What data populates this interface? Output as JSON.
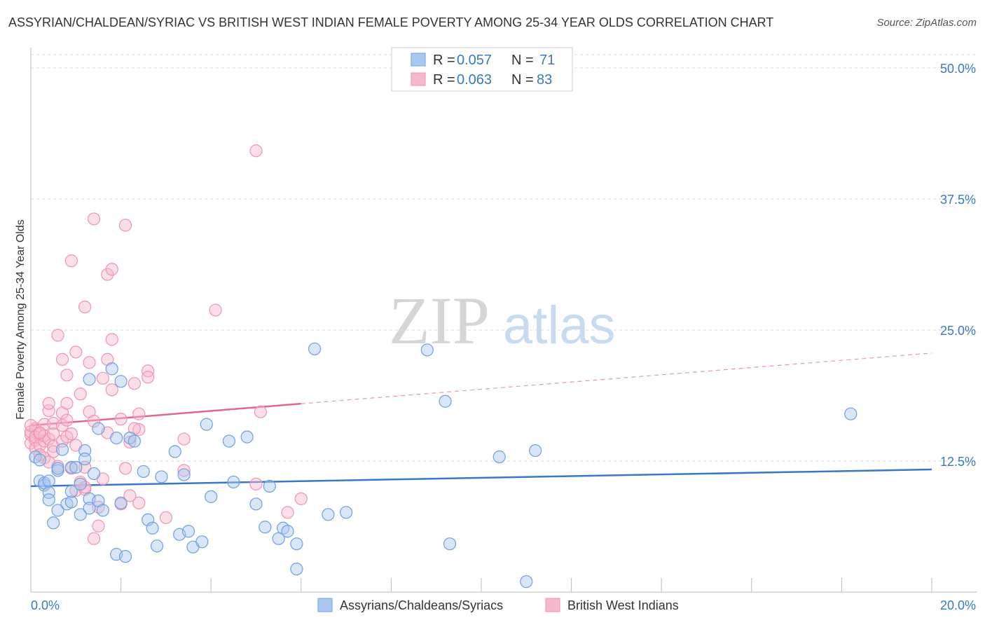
{
  "title": "ASSYRIAN/CHALDEAN/SYRIAC VS BRITISH WEST INDIAN FEMALE POVERTY AMONG 25-34 YEAR OLDS CORRELATION CHART",
  "source": "Source: ZipAtlas.com",
  "watermark": {
    "zip": "ZIP",
    "atlas": "atlas"
  },
  "colors": {
    "blue": "#3b78c4",
    "blue_fill": "#a9c8f0",
    "blue_stroke": "#6f9fdc",
    "pink": "#e0668f",
    "pink_fill": "#f6b8cb",
    "pink_stroke": "#ef93b1",
    "grid": "#d9d9d9",
    "tick": "#3b78c4"
  },
  "legend": {
    "blue": {
      "r_label": "R = ",
      "r_value": "0.057",
      "n_label": "N = ",
      "n_value": "71"
    },
    "pink": {
      "r_label": "R = ",
      "r_value": "0.063",
      "n_label": "N = ",
      "n_value": "83"
    }
  },
  "chart_data": {
    "type": "scatter",
    "title": "ASSYRIAN/CHALDEAN/SYRIAC VS BRITISH WEST INDIAN FEMALE POVERTY AMONG 25-34 YEAR OLDS CORRELATION CHART",
    "xlabel": "",
    "ylabel": "Female Poverty Among 25-34 Year Olds",
    "xlim": [
      0,
      20
    ],
    "ylim": [
      0,
      50
    ],
    "y_ticks": [
      12.5,
      25.0,
      37.5,
      50.0
    ],
    "y_tick_labels": [
      "12.5%",
      "25.0%",
      "37.5%",
      "50.0%"
    ],
    "x_tick_labels": [
      "0.0%",
      "20.0%"
    ],
    "grid": true,
    "legend_position": "top-center",
    "series": [
      {
        "name": "Assyrians/Chaldeans/Syriacs",
        "color": "#3b78c4",
        "trend": {
          "x": [
            0,
            20
          ],
          "y": [
            10.1,
            11.7
          ],
          "solid_until": 20
        },
        "points": [
          [
            0.1,
            12.9
          ],
          [
            0.2,
            10.6
          ],
          [
            0.3,
            10.2
          ],
          [
            0.3,
            10.4
          ],
          [
            0.4,
            9.5
          ],
          [
            0.4,
            8.8
          ],
          [
            0.5,
            6.6
          ],
          [
            0.6,
            7.8
          ],
          [
            0.6,
            11.6
          ],
          [
            0.7,
            13.6
          ],
          [
            0.8,
            8.4
          ],
          [
            0.9,
            8.6
          ],
          [
            0.9,
            9.6
          ],
          [
            0.9,
            11.9
          ],
          [
            1.0,
            11.9
          ],
          [
            1.1,
            7.4
          ],
          [
            1.1,
            10.3
          ],
          [
            1.2,
            13.5
          ],
          [
            1.2,
            12.7
          ],
          [
            1.3,
            8.9
          ],
          [
            1.3,
            8.0
          ],
          [
            1.4,
            11.3
          ],
          [
            1.5,
            8.7
          ],
          [
            1.6,
            7.8
          ],
          [
            1.5,
            15.6
          ],
          [
            1.9,
            3.6
          ],
          [
            1.9,
            14.7
          ],
          [
            2.0,
            8.5
          ],
          [
            2.1,
            3.4
          ],
          [
            2.2,
            14.7
          ],
          [
            2.3,
            14.4
          ],
          [
            2.5,
            11.5
          ],
          [
            2.6,
            6.9
          ],
          [
            2.7,
            6.1
          ],
          [
            2.8,
            4.4
          ],
          [
            2.9,
            11.0
          ],
          [
            3.2,
            13.4
          ],
          [
            3.3,
            5.5
          ],
          [
            3.4,
            11.2
          ],
          [
            3.5,
            5.8
          ],
          [
            3.6,
            4.3
          ],
          [
            3.8,
            4.8
          ],
          [
            3.9,
            16.0
          ],
          [
            4.0,
            9.1
          ],
          [
            4.4,
            14.4
          ],
          [
            4.5,
            10.5
          ],
          [
            4.8,
            14.8
          ],
          [
            5.0,
            8.4
          ],
          [
            5.2,
            6.2
          ],
          [
            5.3,
            10.1
          ],
          [
            5.5,
            5.1
          ],
          [
            5.6,
            6.1
          ],
          [
            5.7,
            5.8
          ],
          [
            5.9,
            4.6
          ],
          [
            5.9,
            2.2
          ],
          [
            1.8,
            21.3
          ],
          [
            2.0,
            20.1
          ],
          [
            6.3,
            23.2
          ],
          [
            6.6,
            7.4
          ],
          [
            7.0,
            7.6
          ],
          [
            8.8,
            23.1
          ],
          [
            9.2,
            18.2
          ],
          [
            9.3,
            4.6
          ],
          [
            10.4,
            12.9
          ],
          [
            11.0,
            1.0
          ],
          [
            11.2,
            13.5
          ],
          [
            18.2,
            17.0
          ],
          [
            0.4,
            10.6
          ],
          [
            0.2,
            12.6
          ],
          [
            1.3,
            20.3
          ],
          [
            0.6,
            11.8
          ]
        ]
      },
      {
        "name": "British West Indians",
        "color": "#e0668f",
        "trend": {
          "x": [
            0,
            20
          ],
          "y": [
            15.9,
            22.8
          ],
          "solid_until": 6.0
        },
        "points": [
          [
            0.0,
            15.0
          ],
          [
            0.0,
            15.3
          ],
          [
            0.0,
            14.2
          ],
          [
            0.1,
            14.5
          ],
          [
            0.1,
            15.6
          ],
          [
            0.1,
            13.7
          ],
          [
            0.1,
            14.8
          ],
          [
            0.2,
            15.1
          ],
          [
            0.2,
            14.0
          ],
          [
            0.2,
            13.1
          ],
          [
            0.3,
            14.4
          ],
          [
            0.3,
            16.0
          ],
          [
            0.3,
            12.8
          ],
          [
            0.3,
            14.9
          ],
          [
            0.4,
            17.3
          ],
          [
            0.4,
            18.0
          ],
          [
            0.4,
            14.6
          ],
          [
            0.4,
            12.4
          ],
          [
            0.5,
            15.1
          ],
          [
            0.5,
            13.9
          ],
          [
            0.5,
            16.1
          ],
          [
            0.6,
            12.0
          ],
          [
            0.6,
            24.5
          ],
          [
            0.7,
            22.2
          ],
          [
            0.7,
            17.1
          ],
          [
            0.7,
            14.4
          ],
          [
            0.7,
            15.9
          ],
          [
            0.8,
            20.7
          ],
          [
            0.8,
            16.4
          ],
          [
            0.8,
            14.8
          ],
          [
            0.8,
            18.0
          ],
          [
            0.9,
            31.6
          ],
          [
            0.9,
            15.1
          ],
          [
            0.9,
            11.8
          ],
          [
            1.0,
            14.0
          ],
          [
            1.0,
            9.7
          ],
          [
            1.0,
            22.9
          ],
          [
            1.1,
            18.9
          ],
          [
            1.1,
            10.5
          ],
          [
            1.2,
            11.9
          ],
          [
            1.2,
            9.8
          ],
          [
            1.2,
            10.0
          ],
          [
            1.2,
            27.2
          ],
          [
            1.3,
            21.9
          ],
          [
            1.3,
            17.2
          ],
          [
            1.4,
            16.3
          ],
          [
            1.4,
            5.1
          ],
          [
            1.4,
            35.6
          ],
          [
            1.5,
            6.3
          ],
          [
            1.5,
            8.1
          ],
          [
            1.6,
            10.8
          ],
          [
            1.6,
            20.4
          ],
          [
            1.7,
            15.2
          ],
          [
            1.7,
            30.3
          ],
          [
            1.7,
            22.2
          ],
          [
            1.8,
            30.8
          ],
          [
            1.8,
            24.1
          ],
          [
            1.8,
            19.3
          ],
          [
            2.0,
            8.4
          ],
          [
            2.0,
            16.5
          ],
          [
            2.1,
            11.8
          ],
          [
            2.1,
            35.0
          ],
          [
            2.2,
            14.3
          ],
          [
            2.2,
            9.2
          ],
          [
            2.3,
            19.9
          ],
          [
            2.4,
            8.5
          ],
          [
            2.4,
            15.5
          ],
          [
            2.4,
            17.0
          ],
          [
            2.6,
            21.1
          ],
          [
            2.6,
            20.5
          ],
          [
            3.0,
            7.1
          ],
          [
            3.4,
            14.6
          ],
          [
            3.4,
            11.6
          ],
          [
            4.1,
            26.9
          ],
          [
            5.0,
            42.1
          ],
          [
            5.0,
            10.3
          ],
          [
            5.1,
            17.2
          ],
          [
            5.7,
            7.6
          ],
          [
            6.0,
            8.9
          ],
          [
            0.0,
            15.9
          ],
          [
            0.2,
            15.2
          ],
          [
            2.3,
            15.6
          ],
          [
            0.5,
            13.4
          ]
        ]
      }
    ]
  }
}
